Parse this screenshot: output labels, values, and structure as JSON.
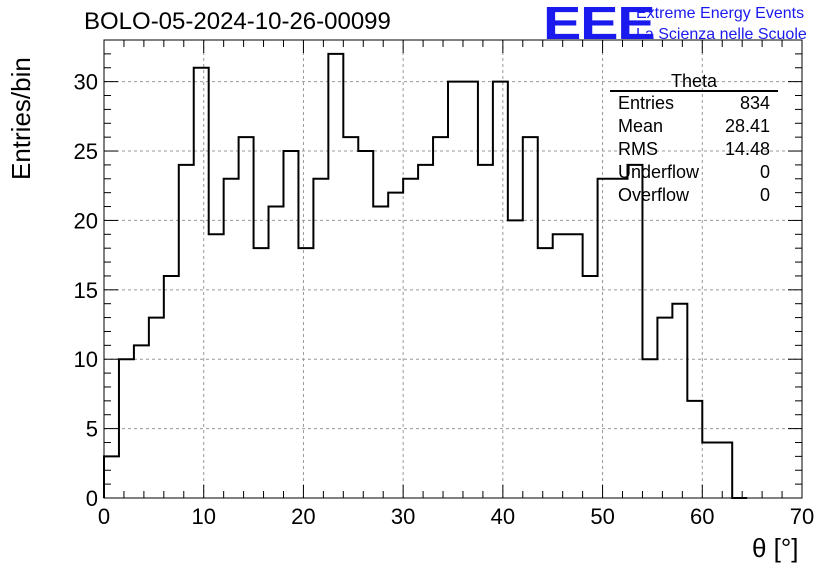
{
  "title": "BOLO-05-2024-10-26-00099",
  "logo": {
    "mark": "EEE",
    "line1": "Extreme Energy Events",
    "line2": "La Scienza nelle Scuole",
    "color": "#1a1aee"
  },
  "stats": {
    "title": "Theta",
    "rows": [
      {
        "label": "Entries",
        "value": "834"
      },
      {
        "label": "Mean",
        "value": "28.41"
      },
      {
        "label": "RMS",
        "value": "14.48"
      },
      {
        "label": "Underflow",
        "value": "0"
      },
      {
        "label": "Overflow",
        "value": "0"
      }
    ]
  },
  "chart_data": {
    "type": "bar",
    "style": "step-histogram",
    "xlabel": "θ [°]",
    "ylabel": "Entries/bin",
    "xlim": [
      0,
      70
    ],
    "ylim": [
      0,
      33
    ],
    "grid": true,
    "bin_width": 1.5,
    "x_start": 0,
    "values": [
      3,
      10,
      11,
      13,
      16,
      24,
      31,
      19,
      23,
      26,
      18,
      21,
      25,
      18,
      23,
      32,
      26,
      25,
      21,
      22,
      23,
      24,
      26,
      30,
      30,
      24,
      30,
      20,
      26,
      18,
      19,
      19,
      16,
      23,
      23,
      24,
      10,
      13,
      14,
      7,
      4,
      4,
      0
    ],
    "x_ticks": [
      "0",
      "10",
      "20",
      "30",
      "40",
      "50",
      "60",
      "70"
    ],
    "y_ticks": [
      "0",
      "5",
      "10",
      "15",
      "20",
      "25",
      "30"
    ]
  }
}
